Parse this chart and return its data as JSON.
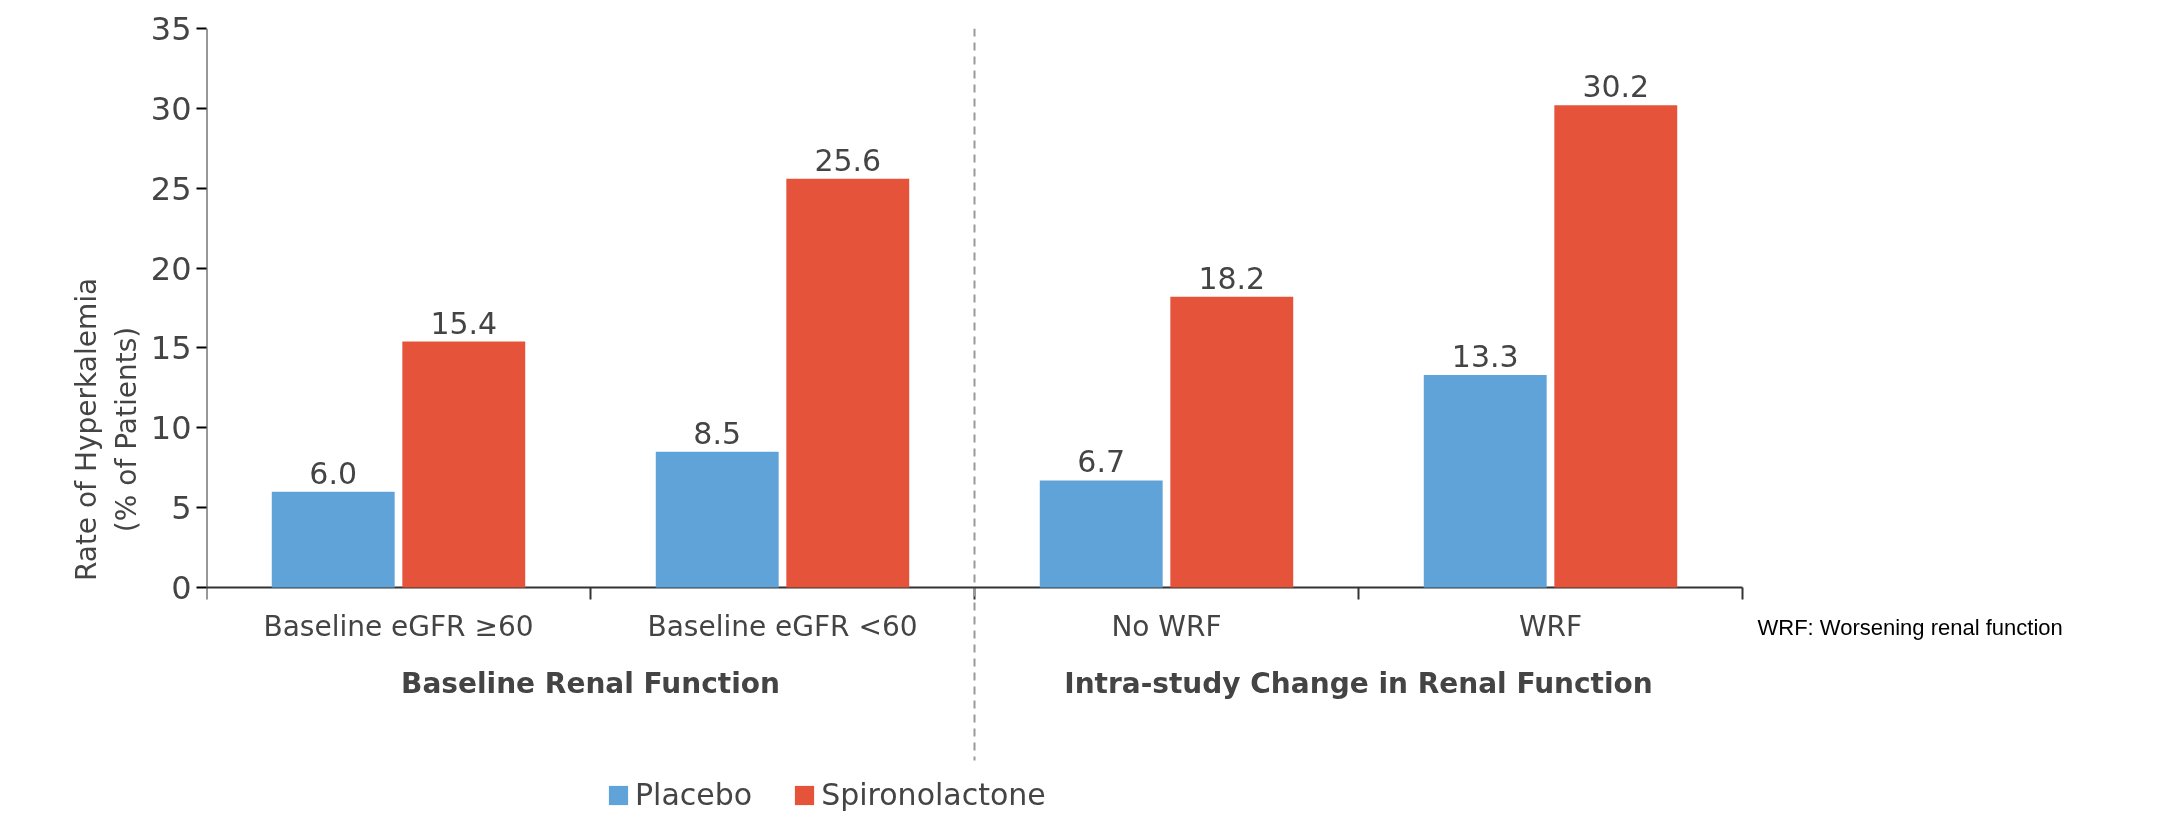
{
  "chart_data": {
    "type": "bar",
    "ylabel": "Rate of Hyperkalemia\n(% of Patients)",
    "categories": [
      "Baseline eGFR ≥60",
      "Baseline eGFR <60",
      "No WRF",
      "WRF"
    ],
    "series": [
      {
        "name": "Placebo",
        "color": "#5fa3d9",
        "values": [
          6.0,
          8.5,
          6.7,
          13.3
        ],
        "value_labels": [
          "6.0",
          "8.5",
          "6.7",
          "13.3"
        ]
      },
      {
        "name": "Spironolactone",
        "color": "#e5533b",
        "values": [
          15.4,
          25.6,
          18.2,
          30.2
        ],
        "value_labels": [
          "15.4",
          "25.6",
          "18.2",
          "30.2"
        ]
      }
    ],
    "ylim": [
      0,
      35
    ],
    "yticks": [
      0,
      5,
      10,
      15,
      20,
      25,
      30,
      35
    ],
    "grid": false,
    "legend": "bottom",
    "annotations": [
      "Baseline Renal Function",
      "Intra-study Change in Renal Function",
      "WRF: Worsening renal function"
    ]
  }
}
